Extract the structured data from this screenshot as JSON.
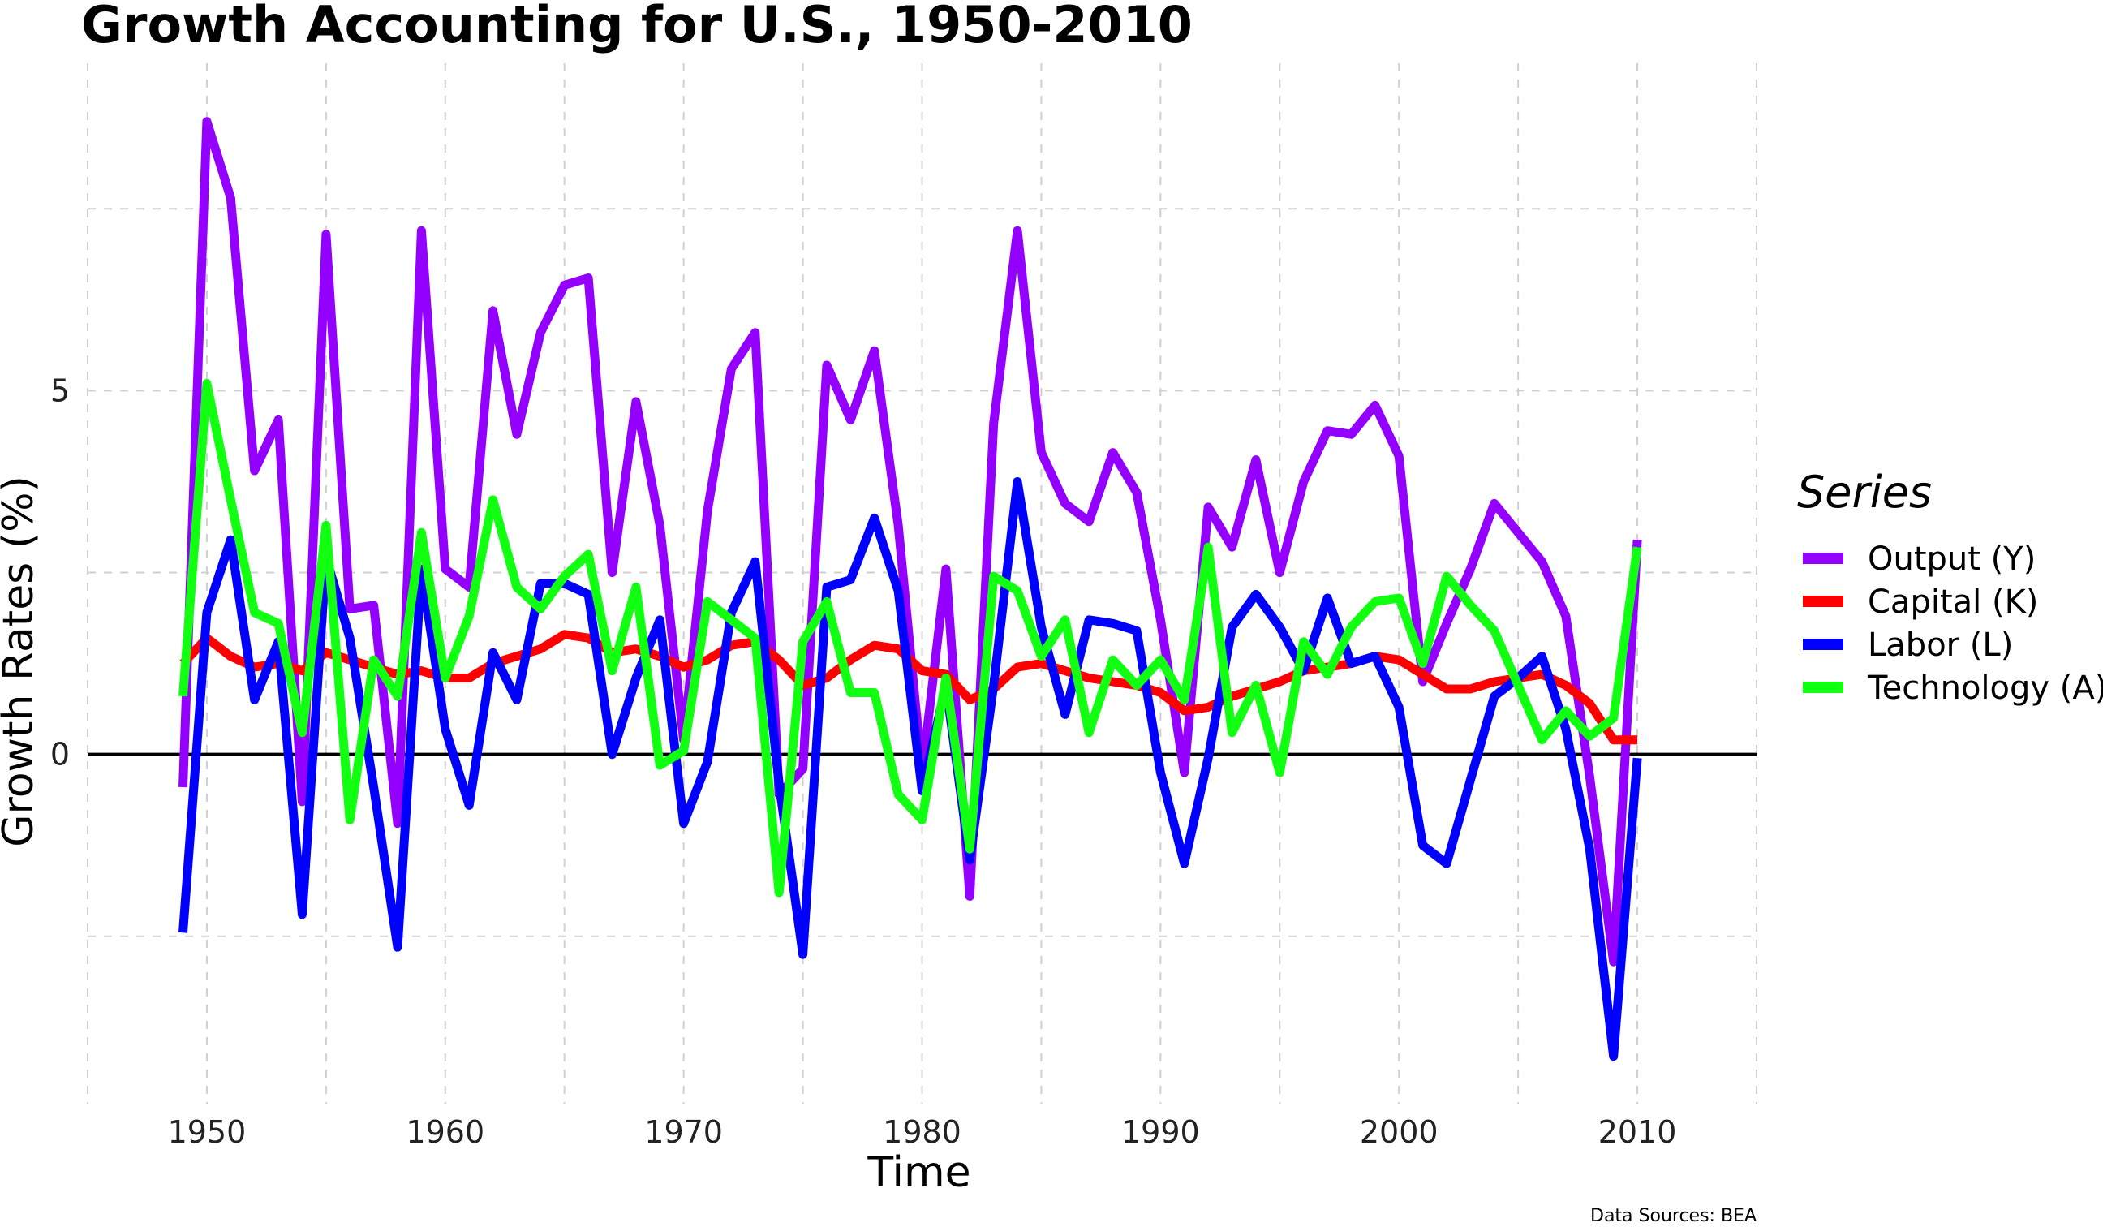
{
  "chart_data": {
    "type": "line",
    "title": "Growth Accounting for U.S., 1950-2010",
    "xlabel": "Time",
    "ylabel": "Growth Rates (%)",
    "caption": "Data Sources: BEA",
    "xlim": [
      1945,
      2015
    ],
    "ylim": [
      -4.8,
      9.5
    ],
    "x_ticks": [
      1950,
      1960,
      1970,
      1980,
      1990,
      2000,
      2010
    ],
    "y_ticks": [
      0,
      5
    ],
    "y_minor_ticks": [
      -5,
      -2.5,
      2.5,
      7.5
    ],
    "grid": true,
    "legend_title": "Series",
    "legend_position": "right",
    "zero_line": true,
    "x": [
      1949,
      1950,
      1951,
      1952,
      1953,
      1954,
      1955,
      1956,
      1957,
      1958,
      1959,
      1960,
      1961,
      1962,
      1963,
      1964,
      1965,
      1966,
      1967,
      1968,
      1969,
      1970,
      1971,
      1972,
      1973,
      1974,
      1975,
      1976,
      1977,
      1978,
      1979,
      1980,
      1981,
      1982,
      1983,
      1984,
      1985,
      1986,
      1987,
      1988,
      1989,
      1990,
      1991,
      1992,
      1993,
      1994,
      1995,
      1996,
      1997,
      1998,
      1999,
      2000,
      2001,
      2002,
      2003,
      2004,
      2005,
      2006,
      2007,
      2008,
      2009,
      2010
    ],
    "series": [
      {
        "name": "Output (Y)",
        "color": "#9400FF",
        "values": [
          -0.45,
          8.7,
          7.65,
          3.9,
          4.6,
          -0.65,
          7.15,
          2.0,
          2.05,
          -0.95,
          7.2,
          2.55,
          2.3,
          6.1,
          4.4,
          5.8,
          6.45,
          6.55,
          2.5,
          4.85,
          3.15,
          0.2,
          3.35,
          5.3,
          5.8,
          -0.55,
          -0.2,
          5.35,
          4.6,
          5.55,
          3.15,
          -0.25,
          2.55,
          -1.95,
          4.55,
          7.2,
          4.15,
          3.45,
          3.2,
          4.15,
          3.6,
          1.85,
          -0.25,
          3.4,
          2.85,
          4.05,
          2.5,
          3.75,
          4.45,
          4.4,
          4.8,
          4.1,
          1.0,
          1.8,
          2.55,
          3.45,
          3.05,
          2.65,
          1.9,
          -0.3,
          -2.85,
          2.95
        ]
      },
      {
        "name": "Capital (K)",
        "color": "#FF0000",
        "values": [
          1.25,
          1.6,
          1.35,
          1.2,
          1.25,
          1.15,
          1.4,
          1.3,
          1.2,
          1.1,
          1.15,
          1.05,
          1.05,
          1.25,
          1.35,
          1.45,
          1.65,
          1.6,
          1.4,
          1.45,
          1.35,
          1.2,
          1.3,
          1.5,
          1.55,
          1.3,
          0.95,
          1.05,
          1.3,
          1.5,
          1.45,
          1.15,
          1.1,
          0.75,
          0.9,
          1.2,
          1.25,
          1.15,
          1.05,
          1.0,
          0.95,
          0.85,
          0.6,
          0.65,
          0.8,
          0.9,
          1.0,
          1.15,
          1.2,
          1.25,
          1.35,
          1.3,
          1.1,
          0.9,
          0.9,
          1.0,
          1.05,
          1.1,
          0.95,
          0.7,
          0.2,
          0.2
        ]
      },
      {
        "name": "Labor (L)",
        "color": "#0000FF",
        "values": [
          -2.45,
          1.95,
          2.95,
          0.75,
          1.55,
          -2.2,
          2.7,
          1.6,
          -0.45,
          -2.65,
          2.55,
          0.35,
          -0.7,
          1.4,
          0.75,
          2.35,
          2.35,
          2.2,
          0.0,
          1.05,
          1.85,
          -0.95,
          -0.1,
          1.95,
          2.65,
          -0.4,
          -2.75,
          2.3,
          2.4,
          3.25,
          2.25,
          -0.5,
          0.95,
          -1.45,
          0.95,
          3.75,
          1.75,
          0.55,
          1.85,
          1.8,
          1.7,
          -0.25,
          -1.5,
          -0.05,
          1.75,
          2.2,
          1.75,
          1.15,
          2.15,
          1.25,
          1.35,
          0.65,
          -1.25,
          -1.5,
          -0.35,
          0.8,
          1.05,
          1.35,
          0.35,
          -1.3,
          -4.15,
          -0.05
        ]
      },
      {
        "name": "Technology (A)",
        "color": "#11FF11",
        "values": [
          0.8,
          5.1,
          3.5,
          1.95,
          1.8,
          0.3,
          3.15,
          -0.9,
          1.3,
          0.8,
          3.05,
          1.05,
          1.9,
          3.5,
          2.3,
          2.0,
          2.45,
          2.75,
          1.15,
          2.3,
          -0.15,
          0.05,
          2.1,
          1.85,
          1.6,
          -1.9,
          1.55,
          2.1,
          0.85,
          0.85,
          -0.55,
          -0.9,
          1.05,
          -1.3,
          2.45,
          2.25,
          1.35,
          1.85,
          0.3,
          1.3,
          0.95,
          1.3,
          0.75,
          2.85,
          0.3,
          0.95,
          -0.25,
          1.55,
          1.1,
          1.75,
          2.1,
          2.15,
          1.25,
          2.45,
          2.05,
          1.7,
          0.95,
          0.2,
          0.6,
          0.25,
          0.5,
          2.85
        ]
      }
    ]
  }
}
